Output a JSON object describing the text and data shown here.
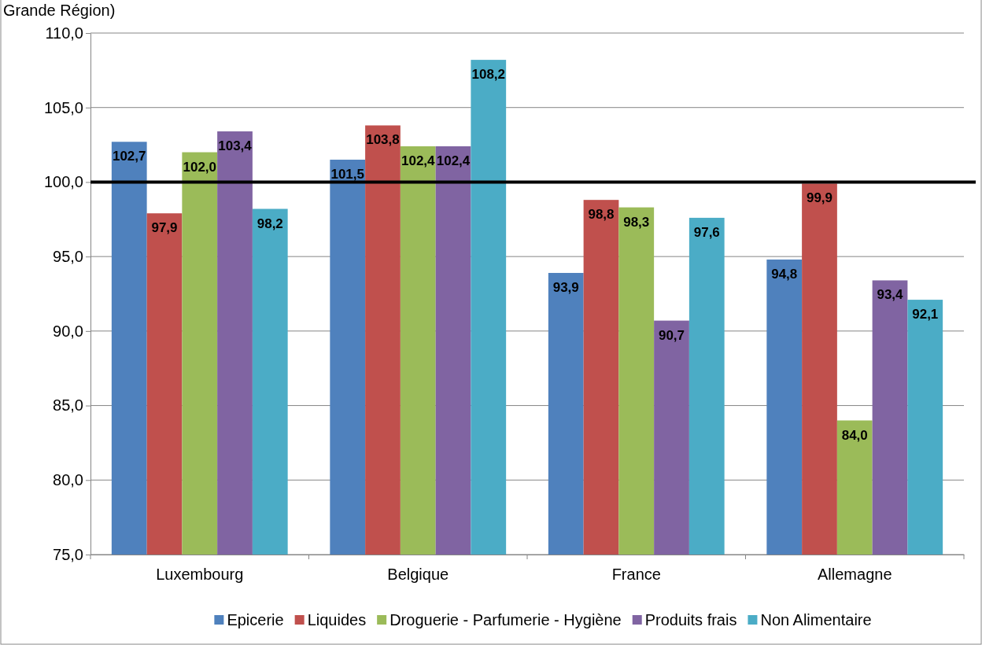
{
  "chart_data": {
    "type": "bar",
    "title": "Grande Région)",
    "categories": [
      "Luxembourg",
      "Belgique",
      "France",
      "Allemagne"
    ],
    "series": [
      {
        "name": "Epicerie",
        "color": "#4f81bd",
        "values": [
          102.7,
          101.5,
          93.9,
          94.8
        ],
        "value_labels": [
          "102,7",
          "101,5",
          "93,9",
          "94,8"
        ]
      },
      {
        "name": "Liquides",
        "color": "#c0504d",
        "values": [
          97.9,
          103.8,
          98.8,
          99.9
        ],
        "value_labels": [
          "97,9",
          "103,8",
          "98,8",
          "99,9"
        ]
      },
      {
        "name": "Droguerie - Parfumerie - Hygiène",
        "color": "#9bbb59",
        "values": [
          102.0,
          102.4,
          98.3,
          84.0
        ],
        "value_labels": [
          "102,0",
          "102,4",
          "98,3",
          "84,0"
        ]
      },
      {
        "name": "Produits frais",
        "color": "#8064a2",
        "values": [
          103.4,
          102.4,
          90.7,
          93.4
        ],
        "value_labels": [
          "103,4",
          "102,4",
          "90,7",
          "93,4"
        ]
      },
      {
        "name": "Non Alimentaire",
        "color": "#4bacc6",
        "values": [
          98.2,
          108.2,
          97.6,
          92.1
        ],
        "value_labels": [
          "98,2",
          "108,2",
          "97,6",
          "92,1"
        ]
      }
    ],
    "ylim": [
      75,
      110
    ],
    "yticks": [
      {
        "value": 75,
        "label": "75,0"
      },
      {
        "value": 80,
        "label": "80,0"
      },
      {
        "value": 85,
        "label": "85,0"
      },
      {
        "value": 90,
        "label": "90,0"
      },
      {
        "value": 95,
        "label": "95,0"
      },
      {
        "value": 100,
        "label": "100,0"
      },
      {
        "value": 105,
        "label": "105,0"
      },
      {
        "value": 110,
        "label": "110,0"
      }
    ],
    "grid": "y",
    "legend": "bottom",
    "ref_lines": [
      {
        "axis": "y",
        "value": 100,
        "color": "#000000"
      }
    ]
  }
}
